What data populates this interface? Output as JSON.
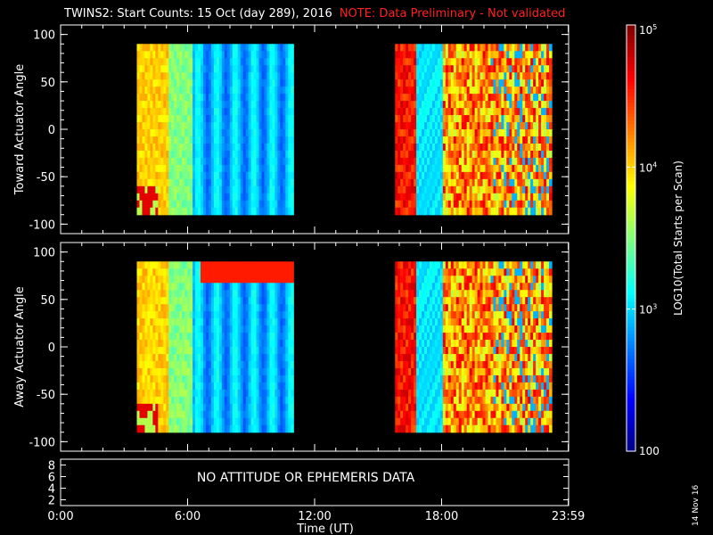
{
  "header": {
    "title": "TWINS2: Start Counts: 15 Oct (day 289), 2016",
    "note": "NOTE: Data Preliminary - Not validated",
    "note_color": "#ff2020"
  },
  "footer": {
    "date_stamp": "14 Nov 16"
  },
  "chart_data": [
    {
      "type": "heatmap",
      "panel": "top",
      "ylabel": "Toward Actuator Angle",
      "ylim": [
        -110,
        110
      ],
      "yticks": [
        "100",
        "50",
        "0",
        "-50",
        "-100"
      ],
      "ytick_values": [
        100,
        50,
        0,
        -50,
        -100
      ],
      "xlim": [
        0,
        24
      ],
      "data_coverage_hours": [
        [
          3.6,
          11.0
        ],
        [
          15.8,
          23.2
        ]
      ],
      "data_angle_range": [
        -90,
        90
      ]
    },
    {
      "type": "heatmap",
      "panel": "middle",
      "ylabel": "Away Actuator Angle",
      "ylim": [
        -110,
        110
      ],
      "yticks": [
        "100",
        "50",
        "0",
        "-50",
        "-100"
      ],
      "ytick_values": [
        100,
        50,
        0,
        -50,
        -100
      ],
      "xlim": [
        0,
        24
      ],
      "data_coverage_hours": [
        [
          3.6,
          11.0
        ],
        [
          15.8,
          23.2
        ]
      ],
      "data_angle_range": [
        -90,
        90
      ]
    },
    {
      "type": "line",
      "panel": "bottom",
      "yticks": [
        "8",
        "6",
        "4",
        "2"
      ],
      "ytick_values": [
        8,
        6,
        4,
        2
      ],
      "ylim": [
        1,
        9
      ],
      "message": "NO ATTITUDE OR EPHEMERIS DATA"
    }
  ],
  "xaxis": {
    "label": "Time (UT)",
    "ticks": [
      "0:00",
      "6:00",
      "12:00",
      "18:00",
      "23:59"
    ],
    "tick_values": [
      0,
      6,
      12,
      18,
      23.983
    ]
  },
  "colorbar": {
    "label": "LOG10(Total Starts per Scan)",
    "ticks": [
      "100",
      "10^3",
      "10^4",
      "10^5"
    ],
    "tick_values": [
      2,
      3,
      4,
      5
    ],
    "range": [
      2,
      5
    ]
  }
}
